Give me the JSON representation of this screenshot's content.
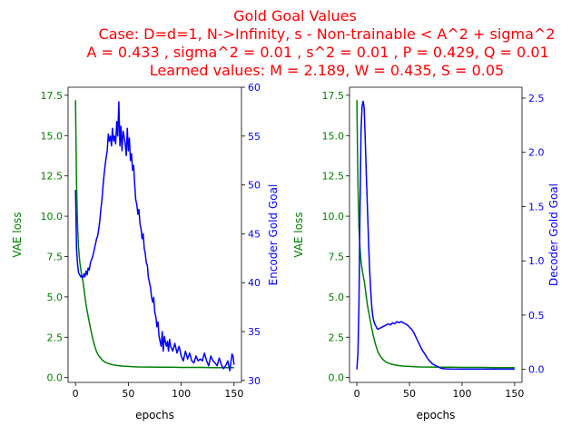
{
  "title_lines": [
    "Gold Goal Values",
    "Case: D=d=1, N->Infinity, s - Non-trainable < A^2 + sigma^2",
    "A = 0.433 , sigma^2 = 0.01 , s^2 = 0.01 , P = 0.429, Q = 0.01",
    "Learned values: M = 2.189, W = 0.435, S = 0.05"
  ],
  "colors": {
    "title": "#ff0000",
    "vae": "#008000",
    "gold": "#0000ff",
    "axis": "#000000"
  },
  "chart_data": [
    {
      "type": "line",
      "xlabel": "epochs",
      "ylabel_left": "VAE loss",
      "ylabel_right": "Encoder Gold Goal",
      "xlim": [
        -7,
        157
      ],
      "ylim_left": [
        -0.3,
        18.0
      ],
      "ylim_right": [
        29.8,
        60.0
      ],
      "xticks": [
        0,
        50,
        100,
        150
      ],
      "yticks_left": [
        0.0,
        2.5,
        5.0,
        7.5,
        10.0,
        12.5,
        15.0,
        17.5
      ],
      "yticks_right": [
        30,
        35,
        40,
        45,
        50,
        55,
        60
      ],
      "grid": false,
      "series": [
        {
          "name": "VAE loss",
          "axis": "left",
          "color": "#008000",
          "x": [
            0,
            1,
            2,
            3,
            4,
            5,
            6,
            7,
            8,
            9,
            10,
            12,
            14,
            16,
            18,
            20,
            22,
            25,
            28,
            32,
            36,
            40,
            45,
            50,
            55,
            60,
            70,
            80,
            90,
            100,
            110,
            120,
            130,
            140,
            150
          ],
          "y": [
            17.2,
            12.0,
            9.3,
            8.0,
            7.2,
            6.7,
            6.3,
            6.0,
            5.5,
            5.0,
            4.5,
            3.8,
            3.1,
            2.5,
            2.0,
            1.6,
            1.35,
            1.1,
            0.95,
            0.85,
            0.78,
            0.74,
            0.71,
            0.69,
            0.67,
            0.66,
            0.65,
            0.64,
            0.64,
            0.63,
            0.63,
            0.63,
            0.62,
            0.62,
            0.62
          ]
        },
        {
          "name": "Encoder Gold Goal",
          "axis": "right",
          "color": "#0000ff",
          "x": [
            0,
            1,
            2,
            3,
            4,
            5,
            6,
            7,
            8,
            9,
            10,
            11,
            12,
            13,
            14,
            15,
            16,
            17,
            18,
            19,
            20,
            21,
            22,
            23,
            24,
            25,
            26,
            27,
            28,
            29,
            30,
            31,
            32,
            33,
            34,
            35,
            36,
            37,
            38,
            39,
            40,
            41,
            42,
            43,
            44,
            45,
            46,
            47,
            48,
            49,
            50,
            51,
            52,
            53,
            54,
            55,
            56,
            57,
            58,
            59,
            60,
            61,
            62,
            63,
            64,
            65,
            66,
            67,
            68,
            69,
            70,
            71,
            72,
            73,
            74,
            75,
            76,
            77,
            78,
            79,
            80,
            81,
            82,
            83,
            84,
            85,
            86,
            87,
            88,
            89,
            90,
            92,
            94,
            96,
            98,
            100,
            102,
            104,
            106,
            108,
            110,
            112,
            114,
            116,
            118,
            120,
            122,
            124,
            126,
            128,
            130,
            132,
            134,
            136,
            138,
            140,
            142,
            144,
            146,
            148,
            149,
            150
          ],
          "y": [
            49.5,
            43.5,
            41.8,
            41.0,
            40.8,
            40.6,
            40.7,
            40.5,
            40.9,
            40.6,
            41.2,
            40.8,
            41.5,
            41.3,
            42.0,
            42.3,
            42.6,
            43.0,
            43.5,
            44.0,
            44.5,
            44.8,
            45.5,
            46.3,
            47.5,
            48.5,
            49.8,
            51.0,
            52.0,
            52.8,
            53.5,
            55.2,
            54.5,
            55.0,
            54.0,
            55.8,
            54.5,
            55.0,
            54.2,
            56.5,
            55.0,
            58.5,
            54.0,
            56.0,
            53.5,
            55.5,
            55.0,
            54.2,
            53.0,
            55.8,
            53.5,
            54.8,
            52.5,
            53.2,
            51.5,
            52.0,
            50.0,
            48.5,
            48.0,
            47.0,
            47.5,
            46.0,
            45.5,
            44.5,
            45.0,
            43.5,
            43.0,
            42.0,
            41.8,
            40.5,
            40.0,
            39.5,
            38.5,
            38.0,
            38.5,
            37.0,
            36.5,
            35.5,
            36.0,
            34.5,
            34.0,
            33.5,
            35.0,
            33.0,
            34.5,
            34.0,
            33.5,
            34.0,
            33.0,
            34.2,
            33.5,
            33.0,
            33.8,
            32.8,
            33.5,
            32.5,
            32.0,
            33.0,
            32.2,
            32.8,
            32.0,
            31.8,
            32.5,
            32.0,
            32.2,
            32.0,
            32.8,
            32.0,
            31.5,
            32.5,
            32.0,
            31.8,
            31.5,
            32.3,
            31.6,
            31.2,
            31.5,
            32.0,
            31.0,
            32.7,
            32.5,
            31.6
          ]
        }
      ]
    },
    {
      "type": "line",
      "xlabel": "epochs",
      "ylabel_left": "VAE loss",
      "ylabel_right": "Decoder Gold Goal",
      "xlim": [
        -7,
        157
      ],
      "ylim_left": [
        -0.3,
        18.0
      ],
      "ylim_right": [
        -0.12,
        2.6
      ],
      "xticks": [
        0,
        50,
        100,
        150
      ],
      "yticks_left": [
        0.0,
        2.5,
        5.0,
        7.5,
        10.0,
        12.5,
        15.0,
        17.5
      ],
      "yticks_right": [
        0.0,
        0.5,
        1.0,
        1.5,
        2.0,
        2.5
      ],
      "grid": false,
      "series": [
        {
          "name": "VAE loss",
          "axis": "left",
          "color": "#008000",
          "x": [
            0,
            1,
            2,
            3,
            4,
            5,
            6,
            7,
            8,
            9,
            10,
            12,
            14,
            16,
            18,
            20,
            22,
            25,
            28,
            32,
            36,
            40,
            45,
            50,
            55,
            60,
            70,
            80,
            90,
            100,
            110,
            120,
            130,
            140,
            150
          ],
          "y": [
            17.2,
            12.0,
            9.3,
            8.0,
            7.2,
            6.7,
            6.3,
            6.0,
            5.5,
            5.0,
            4.5,
            3.8,
            3.1,
            2.5,
            2.0,
            1.6,
            1.35,
            1.1,
            0.95,
            0.85,
            0.78,
            0.74,
            0.71,
            0.69,
            0.67,
            0.66,
            0.65,
            0.64,
            0.64,
            0.63,
            0.63,
            0.63,
            0.62,
            0.62,
            0.62
          ]
        },
        {
          "name": "Decoder Gold Goal",
          "axis": "right",
          "color": "#0000ff",
          "x": [
            0,
            1,
            2,
            3,
            4,
            5,
            6,
            7,
            8,
            9,
            10,
            11,
            12,
            13,
            14,
            15,
            16,
            17,
            18,
            19,
            20,
            22,
            24,
            26,
            28,
            30,
            32,
            34,
            36,
            38,
            40,
            42,
            44,
            46,
            48,
            50,
            52,
            54,
            56,
            58,
            60,
            62,
            64,
            66,
            68,
            70,
            72,
            74,
            76,
            78,
            80,
            85,
            90,
            100,
            110,
            120,
            130,
            140,
            150
          ],
          "y": [
            0.0,
            0.15,
            0.6,
            1.5,
            2.2,
            2.43,
            2.47,
            2.4,
            2.1,
            1.8,
            1.5,
            1.2,
            0.95,
            0.75,
            0.6,
            0.5,
            0.45,
            0.42,
            0.4,
            0.38,
            0.37,
            0.38,
            0.39,
            0.4,
            0.41,
            0.42,
            0.41,
            0.43,
            0.42,
            0.44,
            0.43,
            0.44,
            0.43,
            0.42,
            0.41,
            0.39,
            0.37,
            0.34,
            0.3,
            0.26,
            0.22,
            0.18,
            0.15,
            0.12,
            0.09,
            0.07,
            0.05,
            0.04,
            0.03,
            0.02,
            0.01,
            0.005,
            0.003,
            0.002,
            0.002,
            0.002,
            0.002,
            0.002,
            0.002
          ]
        }
      ]
    }
  ]
}
